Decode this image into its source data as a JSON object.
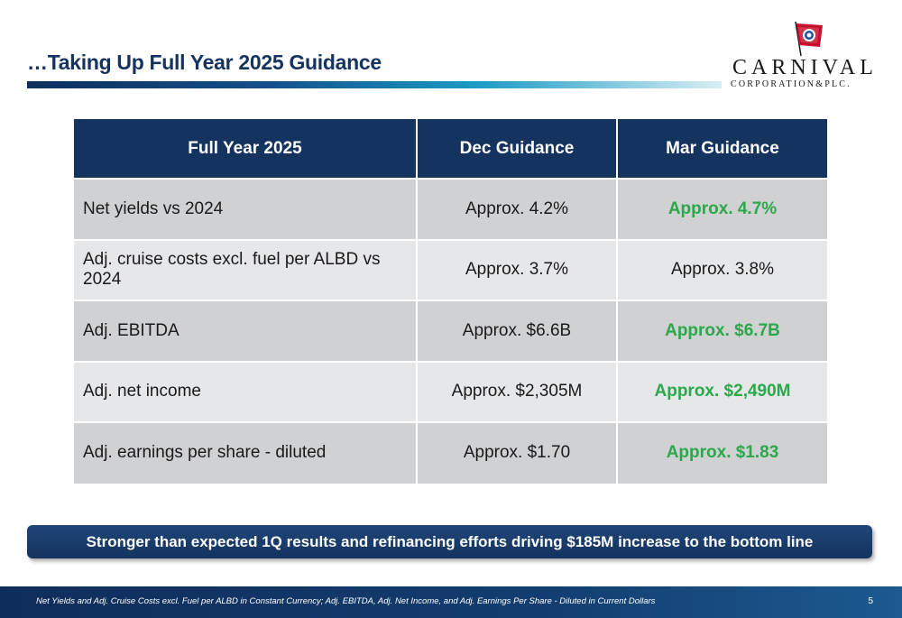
{
  "slide": {
    "title": "…Taking Up Full Year 2025 Guidance",
    "page_number": "5"
  },
  "logo": {
    "name": "CARNIVAL",
    "subtitle": "CORPORATION&PLC."
  },
  "table": {
    "headers": [
      "Full Year 2025",
      "Dec Guidance",
      "Mar Guidance"
    ],
    "rows": [
      {
        "metric": "Net yields vs 2024",
        "dec": "Approx. 4.2%",
        "mar": "Approx. 4.7%",
        "mar_highlight": true
      },
      {
        "metric": "Adj. cruise costs excl. fuel per ALBD vs 2024",
        "dec": "Approx. 3.7%",
        "mar": "Approx. 3.8%",
        "mar_highlight": false
      },
      {
        "metric": "Adj. EBITDA",
        "dec": "Approx. $6.6B",
        "mar": "Approx. $6.7B",
        "mar_highlight": true
      },
      {
        "metric": "Adj. net income",
        "dec": "Approx. $2,305M",
        "mar": "Approx. $2,490M",
        "mar_highlight": true
      },
      {
        "metric": "Adj. earnings per share - diluted",
        "dec": "Approx. $1.70",
        "mar": "Approx. $1.83",
        "mar_highlight": true
      }
    ]
  },
  "callout": {
    "text": "Stronger than expected 1Q results and refinancing efforts driving $185M increase to the bottom line"
  },
  "footer": {
    "footnote": "Net Yields and Adj. Cruise Costs excl. Fuel per ALBD in Constant Currency; Adj. EBITDA, Adj. Net Income, and Adj. Earnings Per Share - Diluted in Current Dollars"
  },
  "colors": {
    "navy": "#14335e",
    "highlight_green": "#2aa84a",
    "row_dark": "#d0d1d3",
    "row_light": "#e6e7e9"
  }
}
